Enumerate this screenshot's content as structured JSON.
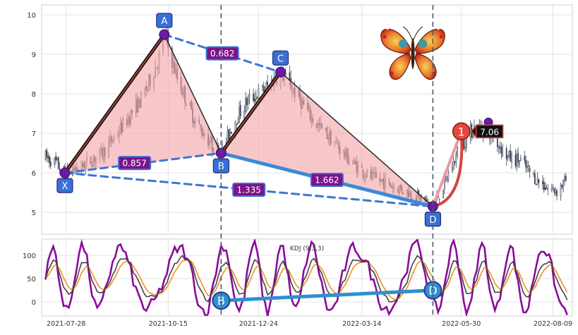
{
  "chart_data": [
    {
      "type": "candlestick",
      "panel": "price",
      "ylim": [
        4.45,
        10.25
      ],
      "xlim": [
        "2021-07-09",
        "2022-08-24"
      ],
      "grid": true,
      "yticks": [
        5,
        6,
        7,
        8,
        9,
        10
      ],
      "ytick_labels": [
        "5",
        "6",
        "7",
        "8",
        "9",
        "10"
      ],
      "xticks": [
        "2021-07-28",
        "2021-10-15",
        "2021-12-24",
        "2022-03-14",
        "2022-05-30",
        "2022-08-09"
      ],
      "vlines": [
        "2021-11-25",
        "2022-05-08"
      ],
      "price_path": [
        [
          "2021-07-12",
          6.4
        ],
        [
          "2021-07-20",
          6.25
        ],
        [
          "2021-07-27",
          6.0
        ],
        [
          "2021-08-08",
          6.15
        ],
        [
          "2021-08-25",
          6.5
        ],
        [
          "2021-09-10",
          7.2
        ],
        [
          "2021-09-25",
          7.9
        ],
        [
          "2021-10-08",
          8.9
        ],
        [
          "2021-10-12",
          9.5
        ],
        [
          "2021-10-22",
          8.4
        ],
        [
          "2021-11-05",
          7.3
        ],
        [
          "2021-11-18",
          6.7
        ],
        [
          "2021-11-25",
          6.5
        ],
        [
          "2021-12-05",
          7.3
        ],
        [
          "2021-12-15",
          7.8
        ],
        [
          "2021-12-28",
          8.1
        ],
        [
          "2022-01-10",
          8.55
        ],
        [
          "2022-01-20",
          8.1
        ],
        [
          "2022-02-05",
          7.3
        ],
        [
          "2022-02-20",
          6.8
        ],
        [
          "2022-03-05",
          6.3
        ],
        [
          "2022-03-20",
          5.9
        ],
        [
          "2022-04-05",
          5.7
        ],
        [
          "2022-04-20",
          5.5
        ],
        [
          "2022-05-08",
          5.15
        ],
        [
          "2022-05-18",
          5.8
        ],
        [
          "2022-05-28",
          6.6
        ],
        [
          "2022-06-10",
          7.2
        ],
        [
          "2022-06-22",
          7.0
        ],
        [
          "2022-07-05",
          6.4
        ],
        [
          "2022-07-15",
          6.3
        ],
        [
          "2022-07-25",
          5.9
        ],
        [
          "2022-08-05",
          5.6
        ],
        [
          "2022-08-12",
          5.55
        ],
        [
          "2022-08-20",
          5.85
        ]
      ],
      "pattern": {
        "points": [
          {
            "label": "X",
            "date": "2021-07-27",
            "price": 6.0
          },
          {
            "label": "A",
            "date": "2021-10-12",
            "price": 9.5
          },
          {
            "label": "B",
            "date": "2021-11-25",
            "price": 6.5
          },
          {
            "label": "C",
            "date": "2022-01-10",
            "price": 8.55
          },
          {
            "label": "D",
            "date": "2022-05-08",
            "price": 5.15
          }
        ],
        "ratios": [
          {
            "value": "0.682",
            "from": "A",
            "to": "C"
          },
          {
            "value": "0.857",
            "from": "X",
            "to": "B"
          },
          {
            "value": "1.335",
            "from": "X",
            "to": "D"
          },
          {
            "value": "1.662",
            "from": "B",
            "to": "D"
          }
        ],
        "projection": {
          "label": "1",
          "date": "2022-05-30",
          "price": 7.05,
          "target_value": "7.06"
        },
        "marker_date": "2022-06-20",
        "marker_price": 7.28
      }
    },
    {
      "type": "line",
      "panel": "indicator",
      "title": "KDJ (9,3,3)",
      "ylim": [
        -30,
        135
      ],
      "yticks": [
        0,
        50,
        100
      ],
      "ytick_labels": [
        "0",
        "50",
        "100"
      ],
      "series": [
        {
          "key": "J",
          "color": "#8b0a9b"
        },
        {
          "key": "D",
          "color": "#f0902a"
        },
        {
          "key": "K",
          "color": "#444444"
        }
      ],
      "divergence": [
        {
          "label": "B",
          "date": "2021-11-25",
          "value": 3
        },
        {
          "label": "D",
          "date": "2022-05-08",
          "value": 25
        }
      ]
    }
  ]
}
